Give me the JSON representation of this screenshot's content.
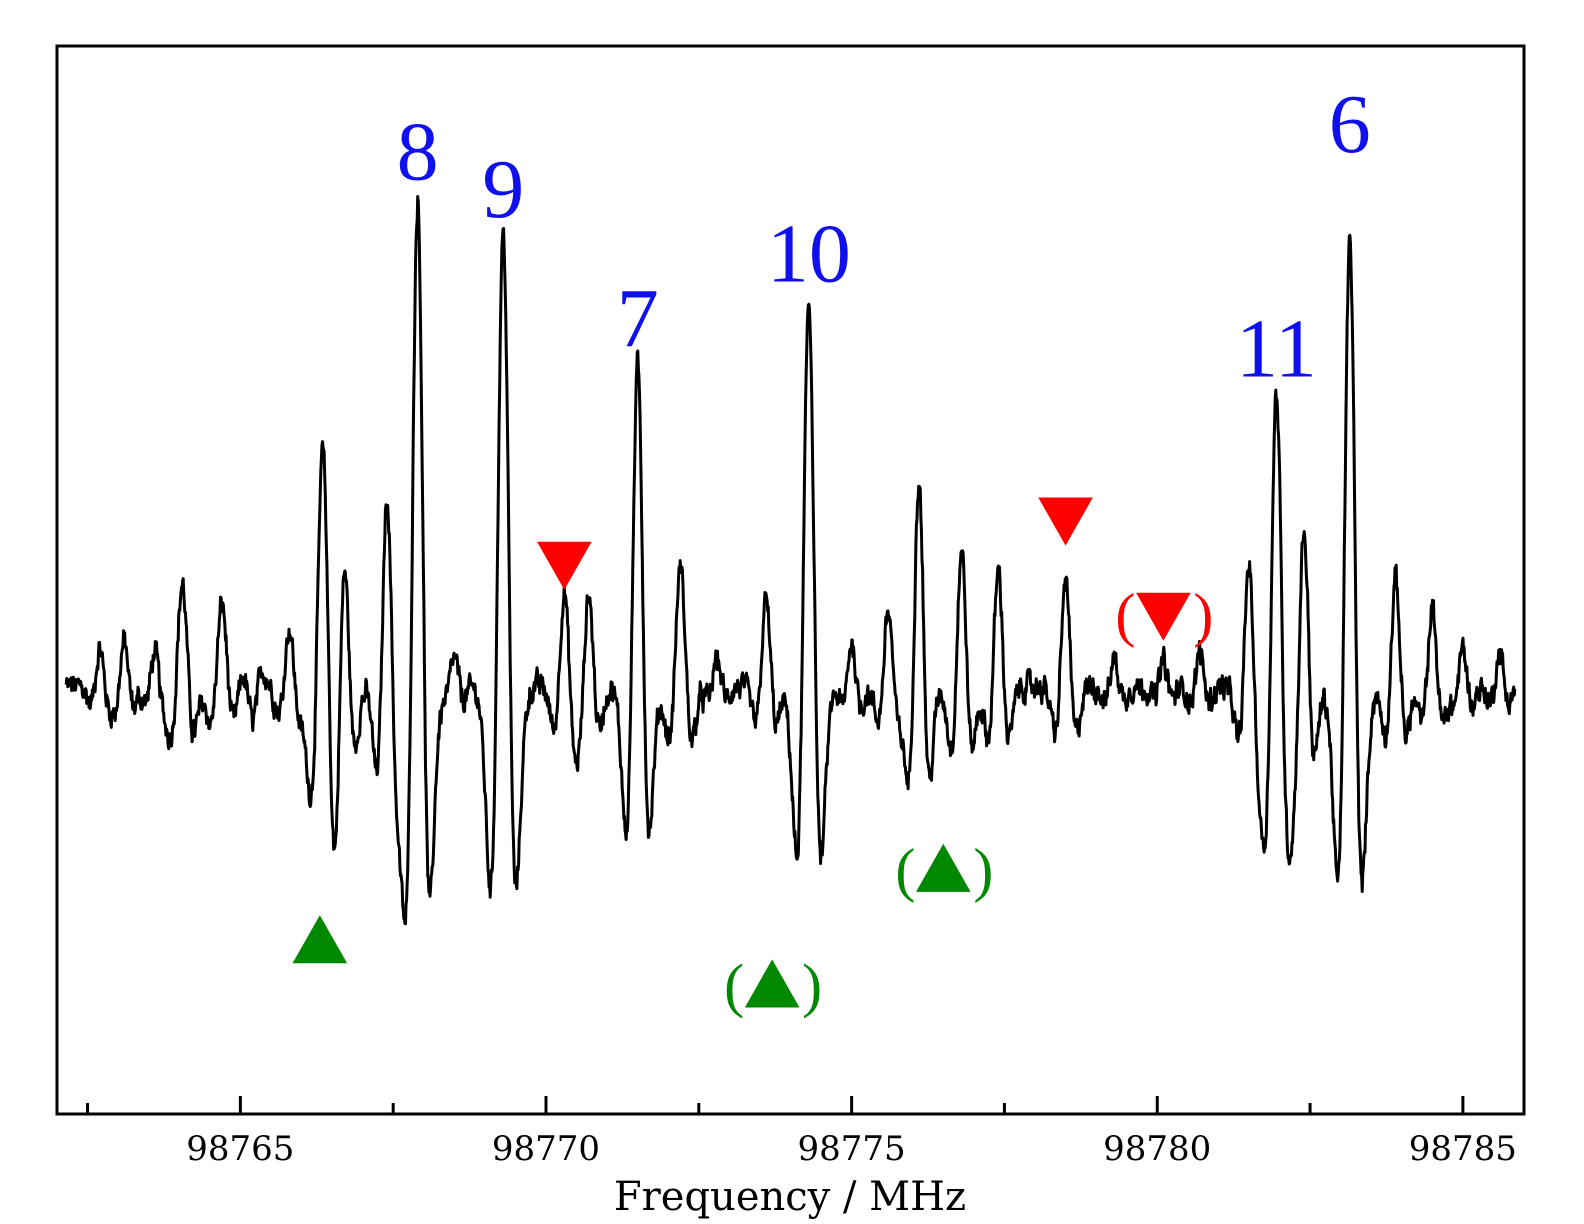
{
  "chart_data": {
    "type": "line",
    "title": "",
    "xlabel": "Frequency / MHz",
    "ylabel": "",
    "xlim": [
      98762,
      98786
    ],
    "ylim": [
      -1.0,
      1.0
    ],
    "x_ticks_major": [
      98765,
      98770,
      98775,
      98780,
      98785
    ],
    "x_tick_labels": [
      "98765",
      "98770",
      "98775",
      "98780",
      "98785"
    ],
    "x_ticks_minor": [
      98762.5,
      98767.5,
      98772.5,
      98777.5,
      98782.5
    ],
    "grid": false,
    "line_color": "#000000",
    "baseline": 0.02,
    "noise_amplitude": 0.035,
    "lines": [
      {
        "x": 98762.7,
        "amp": 0.11,
        "w": 0.09
      },
      {
        "x": 98763.1,
        "amp": 0.13,
        "w": 0.09
      },
      {
        "x": 98763.6,
        "amp": 0.1,
        "w": 0.09
      },
      {
        "x": 98764.05,
        "amp": 0.3,
        "w": 0.11
      },
      {
        "x": 98764.7,
        "amp": 0.24,
        "w": 0.11
      },
      {
        "x": 98765.2,
        "amp": -0.1,
        "w": 0.1
      },
      {
        "x": 98765.8,
        "amp": 0.17,
        "w": 0.1
      },
      {
        "x": 98766.35,
        "amp": 0.7,
        "w": 0.115
      },
      {
        "x": 98766.7,
        "amp": 0.39,
        "w": 0.1
      },
      {
        "x": 98767.4,
        "amp": 0.56,
        "w": 0.1
      },
      {
        "x": 98767.9,
        "amp": 1.43,
        "w": 0.115
      },
      {
        "x": 98768.5,
        "amp": 0.08,
        "w": 0.09
      },
      {
        "x": 98769.3,
        "amp": 1.33,
        "w": 0.12
      },
      {
        "x": 98770.3,
        "amp": 0.28,
        "w": 0.1
      },
      {
        "x": 98770.7,
        "amp": 0.27,
        "w": 0.1
      },
      {
        "x": 98771.5,
        "amp": 0.94,
        "w": 0.11
      },
      {
        "x": 98772.2,
        "amp": 0.35,
        "w": 0.11
      },
      {
        "x": 98772.8,
        "amp": 0.08,
        "w": 0.09
      },
      {
        "x": 98773.6,
        "amp": 0.25,
        "w": 0.1
      },
      {
        "x": 98774.3,
        "amp": 1.13,
        "w": 0.115
      },
      {
        "x": 98775.0,
        "amp": 0.13,
        "w": 0.09
      },
      {
        "x": 98775.6,
        "amp": 0.22,
        "w": 0.1
      },
      {
        "x": 98776.1,
        "amp": 0.61,
        "w": 0.1
      },
      {
        "x": 98776.8,
        "amp": 0.4,
        "w": 0.1
      },
      {
        "x": 98777.4,
        "amp": 0.34,
        "w": 0.1
      },
      {
        "x": 98778.5,
        "amp": 0.31,
        "w": 0.1
      },
      {
        "x": 98779.3,
        "amp": 0.08,
        "w": 0.09
      },
      {
        "x": 98780.1,
        "amp": 0.07,
        "w": 0.09
      },
      {
        "x": 98780.7,
        "amp": 0.1,
        "w": 0.09
      },
      {
        "x": 98781.5,
        "amp": 0.36,
        "w": 0.1
      },
      {
        "x": 98781.95,
        "amp": 0.86,
        "w": 0.11
      },
      {
        "x": 98782.4,
        "amp": 0.46,
        "w": 0.1
      },
      {
        "x": 98783.15,
        "amp": 1.3,
        "w": 0.115
      },
      {
        "x": 98783.9,
        "amp": 0.31,
        "w": 0.1
      },
      {
        "x": 98784.5,
        "amp": 0.23,
        "w": 0.1
      },
      {
        "x": 98785.0,
        "amp": 0.11,
        "w": 0.09
      },
      {
        "x": 98785.6,
        "amp": 0.1,
        "w": 0.09
      }
    ],
    "annotations": [
      {
        "text": "8",
        "x": 98767.9,
        "y": 1.44,
        "color": "#1010ee"
      },
      {
        "text": "9",
        "x": 98769.3,
        "y": 1.33,
        "color": "#1010ee"
      },
      {
        "text": "7",
        "x": 98771.5,
        "y": 0.95,
        "color": "#1010ee"
      },
      {
        "text": "10",
        "x": 98774.3,
        "y": 1.14,
        "color": "#1010ee"
      },
      {
        "text": "11",
        "x": 98781.95,
        "y": 0.86,
        "color": "#1010ee"
      },
      {
        "text": "6",
        "x": 98783.15,
        "y": 1.52,
        "color": "#1010ee"
      }
    ],
    "markers": [
      {
        "shape": "triangle-up",
        "x": 98766.3,
        "y": -0.73,
        "color": "#008800",
        "parenthesized": false
      },
      {
        "shape": "triangle-up",
        "x": 98773.7,
        "y": -0.86,
        "color": "#008800",
        "parenthesized": true
      },
      {
        "shape": "triangle-up",
        "x": 98776.5,
        "y": -0.52,
        "color": "#008800",
        "parenthesized": true
      },
      {
        "shape": "triangle-down",
        "x": 98770.3,
        "y": 0.38,
        "color": "#ff0000",
        "parenthesized": false
      },
      {
        "shape": "triangle-down",
        "x": 98778.5,
        "y": 0.51,
        "color": "#ff0000",
        "parenthesized": false
      },
      {
        "shape": "triangle-down",
        "x": 98780.1,
        "y": 0.23,
        "color": "#ff0000",
        "parenthesized": true
      }
    ]
  }
}
